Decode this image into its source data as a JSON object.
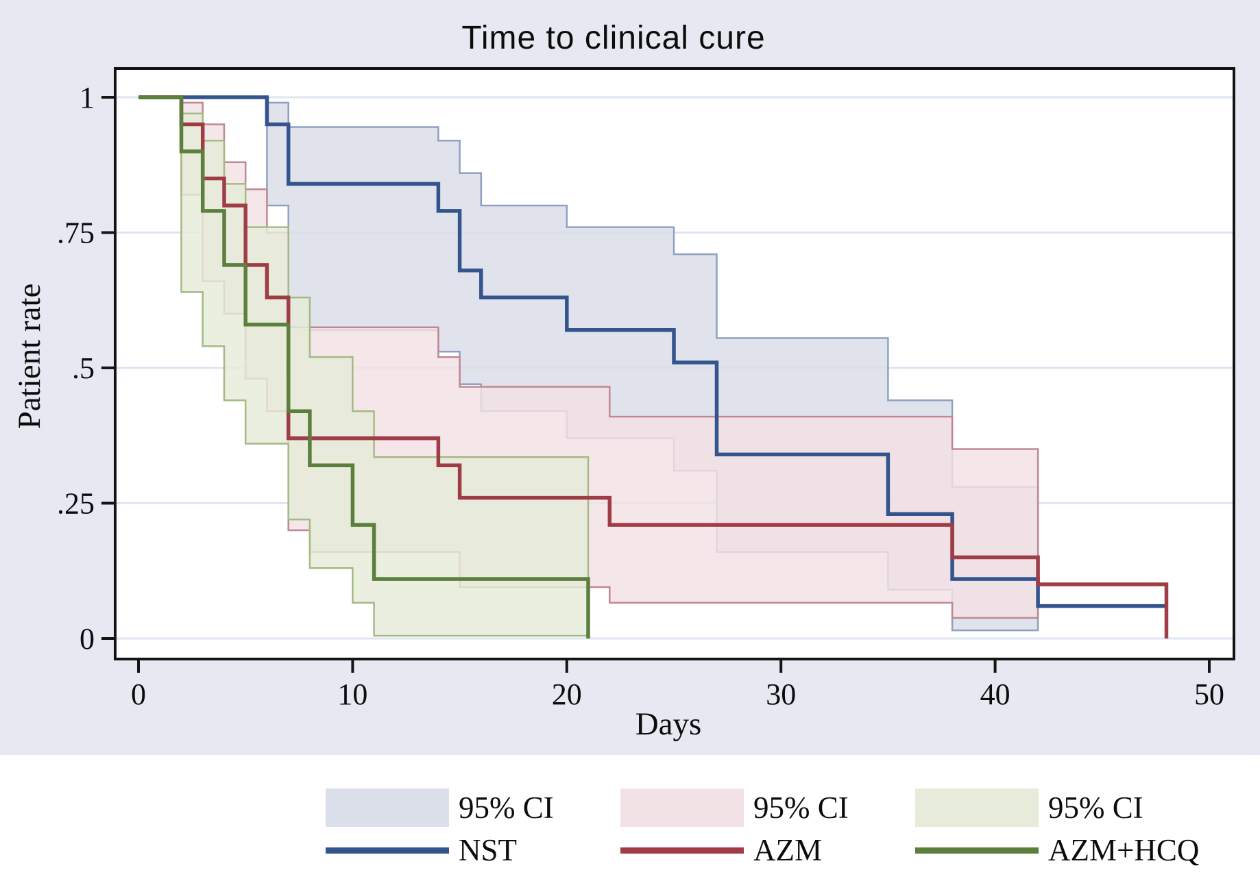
{
  "title": "Time to clinical cure",
  "axes": {
    "x_label": "Days",
    "y_label": "Patient rate",
    "x_ticks": [
      {
        "value": 0,
        "label": "0"
      },
      {
        "value": 10,
        "label": "10"
      },
      {
        "value": 20,
        "label": "20"
      },
      {
        "value": 30,
        "label": "30"
      },
      {
        "value": 40,
        "label": "40"
      },
      {
        "value": 50,
        "label": "50"
      }
    ],
    "y_ticks": [
      {
        "value": 0,
        "label": "0"
      },
      {
        "value": 0.25,
        "label": ".25"
      },
      {
        "value": 0.5,
        "label": ".5"
      },
      {
        "value": 0.75,
        "label": ".75"
      },
      {
        "value": 1,
        "label": "1"
      }
    ]
  },
  "legend": [
    {
      "ci_label": "95% CI",
      "label": "NST",
      "line_color": "#34548e",
      "fill_color": "#dadfe9"
    },
    {
      "ci_label": "95% CI",
      "label": "AZM",
      "line_color": "#a03c46",
      "fill_color": "#f3e2e5"
    },
    {
      "ci_label": "95% CI",
      "label": "AZM+HCQ",
      "line_color": "#5b7f3d",
      "fill_color": "#e6ebda"
    }
  ],
  "colors": {
    "outer_background": "#e6e9f2",
    "plot_background": "#ffffff",
    "gridline": "#dfe5f1",
    "frame": "#141414",
    "nst_line": "#34548e",
    "nst_ci_fill": "#d9dde8",
    "nst_ci_edge": "#8fa0c3",
    "azm_line": "#a03c46",
    "azm_ci_fill": "#f3e1e4",
    "azm_ci_edge": "#c08893",
    "azmhcq_line": "#5b7f3d",
    "azmhcq_ci_fill": "#e5ebd9",
    "azmhcq_ci_edge": "#a3ba82"
  },
  "chart_data": {
    "type": "line",
    "subtype": "kaplan-meier-step",
    "title": "Time to clinical cure",
    "xlabel": "Days",
    "ylabel": "Patient rate",
    "xlim": [
      0,
      50
    ],
    "ylim": [
      0,
      1
    ],
    "grid": "horizontal",
    "legend_position": "bottom",
    "series": [
      {
        "name": "NST",
        "color": "#34548e",
        "ci_name": "95% CI",
        "ci_fill": "#d9dde8",
        "ci_edge": "#8fa0c3",
        "steps": [
          [
            0,
            1
          ],
          [
            6,
            0.95
          ],
          [
            7,
            0.84
          ],
          [
            14,
            0.79
          ],
          [
            15,
            0.68
          ],
          [
            16,
            0.63
          ],
          [
            20,
            0.57
          ],
          [
            25,
            0.51
          ],
          [
            27,
            0.34
          ],
          [
            35,
            0.23
          ],
          [
            38,
            0.11
          ],
          [
            42,
            0.06
          ]
        ],
        "end_day": 48,
        "ci_upper": [
          [
            6,
            0.99
          ],
          [
            7,
            0.945
          ],
          [
            14,
            0.92
          ],
          [
            15,
            0.86
          ],
          [
            16,
            0.8
          ],
          [
            20,
            0.76
          ],
          [
            25,
            0.71
          ],
          [
            27,
            0.555
          ],
          [
            35,
            0.44
          ],
          [
            38,
            0.28
          ]
        ],
        "ci_lower": [
          [
            6,
            0.8
          ],
          [
            7,
            0.57
          ],
          [
            14,
            0.53
          ],
          [
            15,
            0.47
          ],
          [
            16,
            0.42
          ],
          [
            20,
            0.37
          ],
          [
            25,
            0.31
          ],
          [
            27,
            0.16
          ],
          [
            35,
            0.09
          ],
          [
            38,
            0.015
          ]
        ],
        "ci_end_day": 42
      },
      {
        "name": "AZM",
        "color": "#a03c46",
        "ci_name": "95% CI",
        "ci_fill": "#f3e1e4",
        "ci_edge": "#c08893",
        "steps": [
          [
            0,
            1
          ],
          [
            2,
            0.95
          ],
          [
            3,
            0.85
          ],
          [
            4,
            0.8
          ],
          [
            5,
            0.69
          ],
          [
            6,
            0.63
          ],
          [
            7,
            0.37
          ],
          [
            14,
            0.32
          ],
          [
            15,
            0.26
          ],
          [
            22,
            0.21
          ],
          [
            38,
            0.15
          ],
          [
            42,
            0.1
          ],
          [
            48,
            0
          ]
        ],
        "end_day": 48,
        "ci_upper": [
          [
            2,
            0.99
          ],
          [
            3,
            0.95
          ],
          [
            4,
            0.88
          ],
          [
            5,
            0.83
          ],
          [
            6,
            0.75
          ],
          [
            7,
            0.575
          ],
          [
            14,
            0.52
          ],
          [
            15,
            0.465
          ],
          [
            22,
            0.41
          ],
          [
            38,
            0.35
          ]
        ],
        "ci_lower": [
          [
            2,
            0.82
          ],
          [
            3,
            0.66
          ],
          [
            4,
            0.6
          ],
          [
            5,
            0.48
          ],
          [
            6,
            0.42
          ],
          [
            7,
            0.2
          ],
          [
            8,
            0.16
          ],
          [
            15,
            0.095
          ],
          [
            22,
            0.066
          ],
          [
            38,
            0.038
          ]
        ],
        "ci_end_day": 42
      },
      {
        "name": "AZM+HCQ",
        "color": "#5b7f3d",
        "ci_name": "95% CI",
        "ci_fill": "#e5ebd9",
        "ci_edge": "#a3ba82",
        "steps": [
          [
            0,
            1
          ],
          [
            2,
            0.9
          ],
          [
            3,
            0.79
          ],
          [
            4,
            0.69
          ],
          [
            5,
            0.58
          ],
          [
            7,
            0.42
          ],
          [
            8,
            0.32
          ],
          [
            10,
            0.21
          ],
          [
            11,
            0.11
          ],
          [
            21,
            0
          ]
        ],
        "end_day": 21,
        "ci_upper": [
          [
            2,
            0.97
          ],
          [
            3,
            0.92
          ],
          [
            4,
            0.84
          ],
          [
            5,
            0.76
          ],
          [
            7,
            0.63
          ],
          [
            8,
            0.52
          ],
          [
            10,
            0.42
          ],
          [
            11,
            0.335
          ]
        ],
        "ci_lower": [
          [
            2,
            0.64
          ],
          [
            3,
            0.54
          ],
          [
            4,
            0.44
          ],
          [
            5,
            0.36
          ],
          [
            7,
            0.22
          ],
          [
            8,
            0.13
          ],
          [
            10,
            0.066
          ],
          [
            11,
            0.005
          ]
        ],
        "ci_end_day": 21
      }
    ]
  }
}
